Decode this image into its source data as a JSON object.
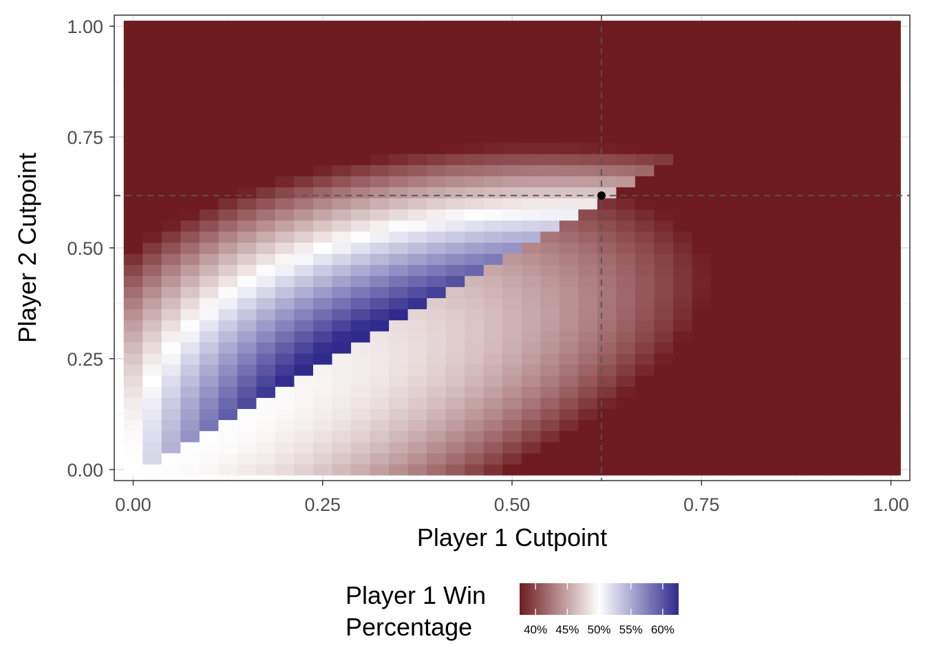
{
  "chart_data": {
    "type": "heatmap",
    "title": "",
    "xlabel": "Player 1 Cutpoint",
    "ylabel": "Player 2 Cutpoint",
    "xlim": [
      -0.025,
      1.025
    ],
    "ylim": [
      -0.025,
      1.025
    ],
    "grid": true,
    "x_ticks": [
      "0.00",
      "0.25",
      "0.50",
      "0.75",
      "1.00"
    ],
    "y_ticks": [
      "0.00",
      "0.25",
      "0.50",
      "0.75",
      "1.00"
    ],
    "x_tick_values": [
      0,
      0.25,
      0.5,
      0.75,
      1
    ],
    "y_tick_values": [
      0,
      0.25,
      0.5,
      0.75,
      1
    ],
    "grid_steps": 40,
    "value_description": "Player 1 win probability at each (x, y) cutpoint pair, x = Player 1 cutpoint, y = Player 2 cutpoint, both 0 to 1 in steps of 0.025",
    "fill_scale": {
      "title_lines": [
        "Player 1 Win",
        "Percentage"
      ],
      "low_color": "#6e1c1f",
      "mid_color": "#ffffff",
      "high_color": "#2f2a8c",
      "midpoint": 0.5,
      "limits": [
        0.375,
        0.625
      ],
      "breaks": [
        0.4,
        0.45,
        0.5,
        0.55,
        0.6
      ],
      "break_labels": [
        "40%",
        "45%",
        "50%",
        "55%",
        "60%"
      ]
    },
    "reference_lines": {
      "vertical_x": 0.618,
      "horizontal_y": 0.618,
      "style": "dashed",
      "color": "#555555"
    },
    "equilibrium_point": {
      "x": 0.618,
      "y": 0.618,
      "color": "#000000"
    },
    "legend_position": "bottom"
  }
}
